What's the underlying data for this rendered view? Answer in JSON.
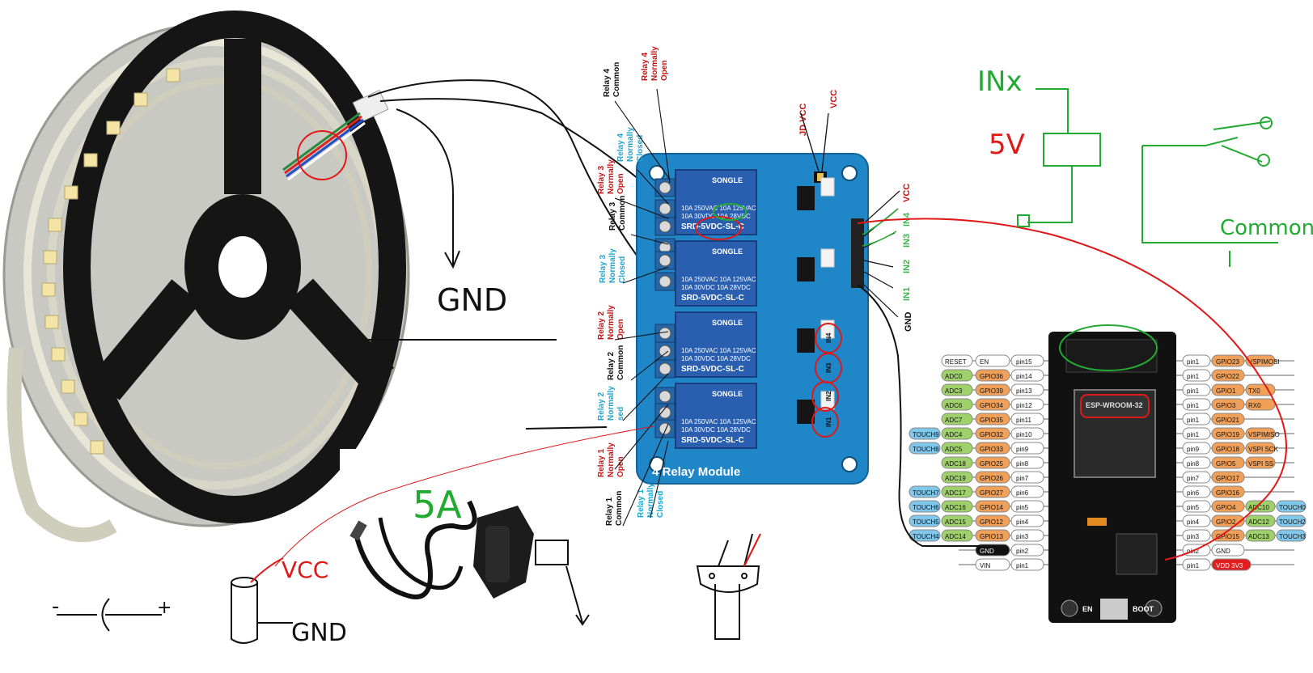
{
  "relay": {
    "board_title": "4 Relay Module",
    "relay_brand": "SONGLE",
    "relay_rating_1": "10A 250VAC  10A 125VAC",
    "relay_rating_2": "10A 30VDC   10A 28VDC",
    "relay_model": "SRD-5VDC-SL-C",
    "input_labels": [
      "IN4",
      "IN3",
      "IN2",
      "IN1"
    ],
    "top_labels": {
      "jd_vcc": "JD VCC",
      "vcc": "VCC"
    },
    "right_labels": {
      "vcc": "VCC",
      "in4": "IN4",
      "in3": "IN3",
      "in2": "IN2",
      "in1": "IN1",
      "gnd": "GND"
    },
    "left_labels": [
      {
        "id": "r4-common",
        "line1": "Relay 4",
        "line2": "Common",
        "color": "#111111"
      },
      {
        "id": "r4-no",
        "line1": "Relay 4",
        "line2": "Normally",
        "line3": "Open",
        "color": "#d01010"
      },
      {
        "id": "r4-nc",
        "line1": "Relay 4",
        "line2": "Normally",
        "line3": "Closed",
        "color": "#1aa7d6"
      },
      {
        "id": "r3-no",
        "line1": "Relay 3",
        "line2": "Normally",
        "line3": "Open",
        "color": "#d01010"
      },
      {
        "id": "r3-common",
        "line1": "Relay 3",
        "line2": "Common",
        "color": "#111111"
      },
      {
        "id": "r3-nc",
        "line1": "Relay 3",
        "line2": "Normally",
        "line3": "Closed",
        "color": "#1aa7d6"
      },
      {
        "id": "r2-no",
        "line1": "Relay 2",
        "line2": "Normally",
        "line3": "Open",
        "color": "#d01010"
      },
      {
        "id": "r2-common",
        "line1": "Relay 2",
        "line2": "Common",
        "color": "#111111"
      },
      {
        "id": "r2-nc",
        "line1": "Relay 2",
        "line2": "Normally",
        "line3": "sed",
        "color": "#1aa7d6"
      },
      {
        "id": "r1-no",
        "line1": "Relay 1",
        "line2": "Normally",
        "line3": "Open",
        "color": "#d01010"
      },
      {
        "id": "r1-common",
        "line1": "Relay 1",
        "line2": "Common",
        "color": "#111111"
      },
      {
        "id": "r1-nc",
        "line1": "Relay 1",
        "line2": "Normally",
        "line3": "Closed",
        "color": "#1aa7d6"
      }
    ]
  },
  "esp32": {
    "module_label": "ESP-WROOM-32",
    "boot_label": "BOOT",
    "en_label": "EN",
    "left_pins": [
      {
        "tags": [
          "RESET"
        ],
        "name": "EN",
        "pin": "pin15"
      },
      {
        "tags": [
          "ADC0"
        ],
        "name": "GPIO36",
        "pin": "pin14"
      },
      {
        "tags": [
          "ADC3"
        ],
        "name": "GPIO39",
        "pin": "pin13"
      },
      {
        "tags": [
          "ADC6"
        ],
        "name": "GPIO34",
        "pin": "pin12"
      },
      {
        "tags": [
          "ADC7"
        ],
        "name": "GPIO35",
        "pin": "pin11"
      },
      {
        "tags": [
          "TOUCH9",
          "ADC4"
        ],
        "name": "GPIO32",
        "pin": "pin10"
      },
      {
        "tags": [
          "TOUCH8",
          "ADC5"
        ],
        "name": "GPIO33",
        "pin": "pin9"
      },
      {
        "tags": [
          "ADC18"
        ],
        "name": "GPIO25",
        "pin": "pin8"
      },
      {
        "tags": [
          "ADC19"
        ],
        "name": "GPIO26",
        "pin": "pin7"
      },
      {
        "tags": [
          "TOUCH7",
          "ADC17"
        ],
        "name": "GPIO27",
        "pin": "pin6"
      },
      {
        "tags": [
          "TOUCH6",
          "ADC16"
        ],
        "name": "GPIO14",
        "pin": "pin5"
      },
      {
        "tags": [
          "TOUCH5",
          "ADC15"
        ],
        "name": "GPIO12",
        "pin": "pin4"
      },
      {
        "tags": [
          "TOUCH4",
          "ADC14"
        ],
        "name": "GPIO13",
        "pin": "pin3"
      },
      {
        "tags": [],
        "name": "GND",
        "pin": "pin2"
      },
      {
        "tags": [],
        "name": "VIN",
        "pin": "pin1"
      }
    ],
    "right_pins": [
      {
        "pin": "pin1",
        "name": "GPIO23",
        "tags": [
          "VSPIMOSI"
        ]
      },
      {
        "pin": "pin1",
        "name": "GPIO22",
        "tags": []
      },
      {
        "pin": "pin1",
        "name": "GPIO1",
        "tags": [
          "TX0"
        ]
      },
      {
        "pin": "pin1",
        "name": "GPIO3",
        "tags": [
          "RX0"
        ]
      },
      {
        "pin": "pin1",
        "name": "GPIO21",
        "tags": []
      },
      {
        "pin": "pin1",
        "name": "GPIO19",
        "tags": [
          "VSPIMISO"
        ]
      },
      {
        "pin": "pin9",
        "name": "GPIO18",
        "tags": [
          "VSPI SCK"
        ]
      },
      {
        "pin": "pin8",
        "name": "GPIO5",
        "tags": [
          "VSPI SS"
        ]
      },
      {
        "pin": "pin7",
        "name": "GPIO17",
        "tags": []
      },
      {
        "pin": "pin6",
        "name": "GPIO16",
        "tags": []
      },
      {
        "pin": "pin5",
        "name": "GPIO4",
        "tags": [
          "ADC10",
          "TOUCH0"
        ]
      },
      {
        "pin": "pin4",
        "name": "GPIO2",
        "tags": [
          "ADC12",
          "TOUCH2"
        ]
      },
      {
        "pin": "pin3",
        "name": "GPIO15",
        "tags": [
          "ADC13",
          "TOUCH3"
        ]
      },
      {
        "pin": "pin2",
        "name": "GND",
        "tags": []
      },
      {
        "pin": "pin1",
        "name": "VDD 3V3",
        "tags": []
      }
    ]
  },
  "annotations": {
    "gnd_top": "GND",
    "gnd_bottom": "GND",
    "vcc": "VCC",
    "amps": "5A",
    "in_5v": "INx",
    "five_v": "5V",
    "common": "Common",
    "plus": "+",
    "minus": "-"
  },
  "colors": {
    "wire_red": "#e01818",
    "hand_green": "#22aa33",
    "relay_pcb": "#1f86c8",
    "relay_blue": "#2a5fb0",
    "esp_board": "#111111",
    "gpio_orange": "#f1a05a",
    "adc_green": "#9fd16a",
    "touch_blue": "#7fc8ec",
    "gnd_black": "#111111",
    "vdd_red": "#e02020"
  }
}
